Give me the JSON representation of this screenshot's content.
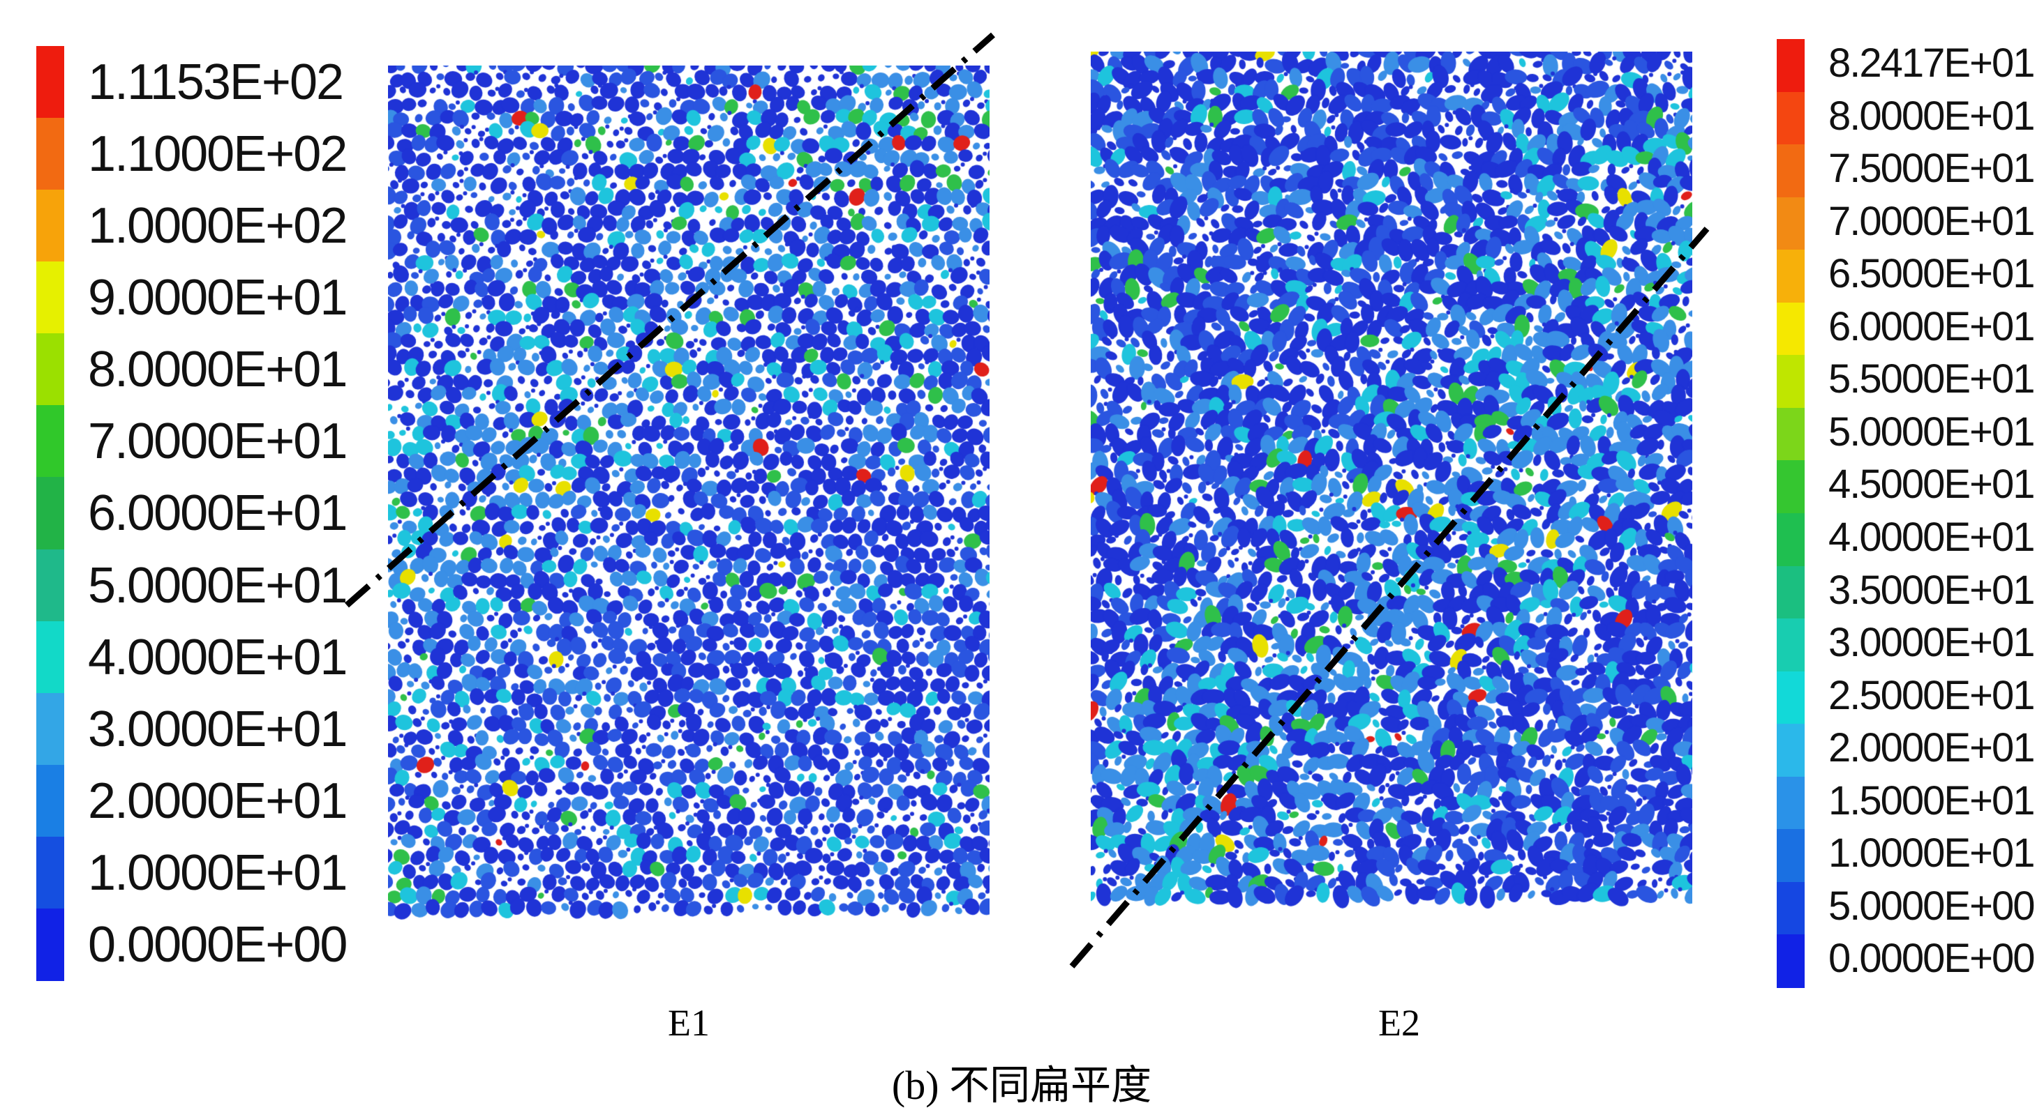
{
  "legend_left": {
    "labels": [
      "1.1153E+02",
      "1.1000E+02",
      "1.0000E+02",
      "9.0000E+01",
      "8.0000E+01",
      "7.0000E+01",
      "6.0000E+01",
      "5.0000E+01",
      "4.0000E+01",
      "3.0000E+01",
      "2.0000E+01",
      "1.0000E+01",
      "0.0000E+00"
    ],
    "colors": [
      "#ee1c0e",
      "#f26a12",
      "#f7a30a",
      "#e6f000",
      "#9be000",
      "#30c82a",
      "#22b347",
      "#1fb98a",
      "#12d9c8",
      "#33a6e6",
      "#1a7fe4",
      "#154fe0",
      "#1122e6"
    ]
  },
  "legend_right": {
    "labels": [
      "8.2417E+01",
      "8.0000E+01",
      "7.5000E+01",
      "7.0000E+01",
      "6.5000E+01",
      "6.0000E+01",
      "5.5000E+01",
      "5.0000E+01",
      "4.5000E+01",
      "4.0000E+01",
      "3.5000E+01",
      "3.0000E+01",
      "2.5000E+01",
      "2.0000E+01",
      "1.5000E+01",
      "1.0000E+01",
      "5.0000E+00",
      "0.0000E+00"
    ],
    "colors": [
      "#ee1c0e",
      "#f44611",
      "#f26a12",
      "#f28a14",
      "#f7b00a",
      "#f5e800",
      "#bfe600",
      "#7cd61a",
      "#35c630",
      "#1fbf50",
      "#1bbf80",
      "#18cdb0",
      "#12d9d8",
      "#2bb8ea",
      "#2a92e8",
      "#1a70e2",
      "#1547e2",
      "#1122e6"
    ]
  },
  "panels": {
    "e1_label": "E1",
    "e2_label": "E2",
    "particle_colors": {
      "dark_blue": "#1f33d6",
      "blue": "#2a55e0",
      "light_blue": "#3a8fe6",
      "cyan": "#1ec4dd",
      "green": "#2fc04a",
      "yellow": "#e8e000",
      "red": "#e0201a",
      "gap": "#ffffff"
    }
  },
  "caption": {
    "prefix": "(b) ",
    "text": "不同扁平度"
  }
}
